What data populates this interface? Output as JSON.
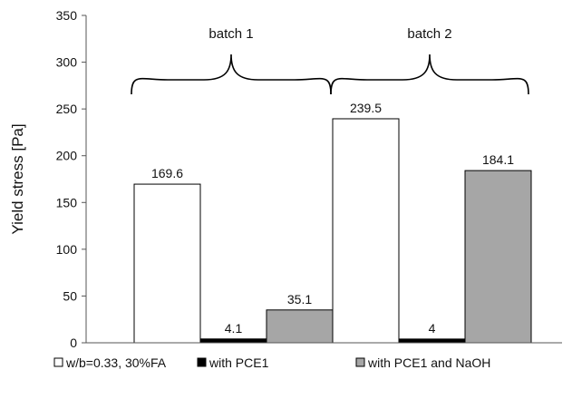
{
  "chart_data": {
    "type": "bar",
    "title": "",
    "xlabel": "",
    "ylabel": "Yield stress [Pa]",
    "ylim": [
      0,
      350
    ],
    "yticks": [
      0,
      50,
      100,
      150,
      200,
      250,
      300,
      350
    ],
    "grid": false,
    "legend_position": "bottom",
    "groups": [
      {
        "label": "batch 1",
        "bars": [
          {
            "series": "w/b=0.33, 30%FA",
            "value": 169.6,
            "label": "169.6"
          },
          {
            "series": "with PCE1",
            "value": 4.1,
            "label": "4.1"
          },
          {
            "series": "with PCE1 and NaOH",
            "value": 35.1,
            "label": "35.1"
          }
        ]
      },
      {
        "label": "batch 2",
        "bars": [
          {
            "series": "w/b=0.33, 30%FA",
            "value": 239.5,
            "label": "239.5"
          },
          {
            "series": "with PCE1",
            "value": 4,
            "label": "4"
          },
          {
            "series": "with PCE1 and NaOH",
            "value": 184.1,
            "label": "184.1"
          }
        ]
      }
    ],
    "series": [
      {
        "name": "w/b=0.33, 30%FA",
        "color": "#ffffff"
      },
      {
        "name": "with PCE1",
        "color": "#000000"
      },
      {
        "name": "with PCE1 and NaOH",
        "color": "#a6a6a6"
      }
    ]
  }
}
